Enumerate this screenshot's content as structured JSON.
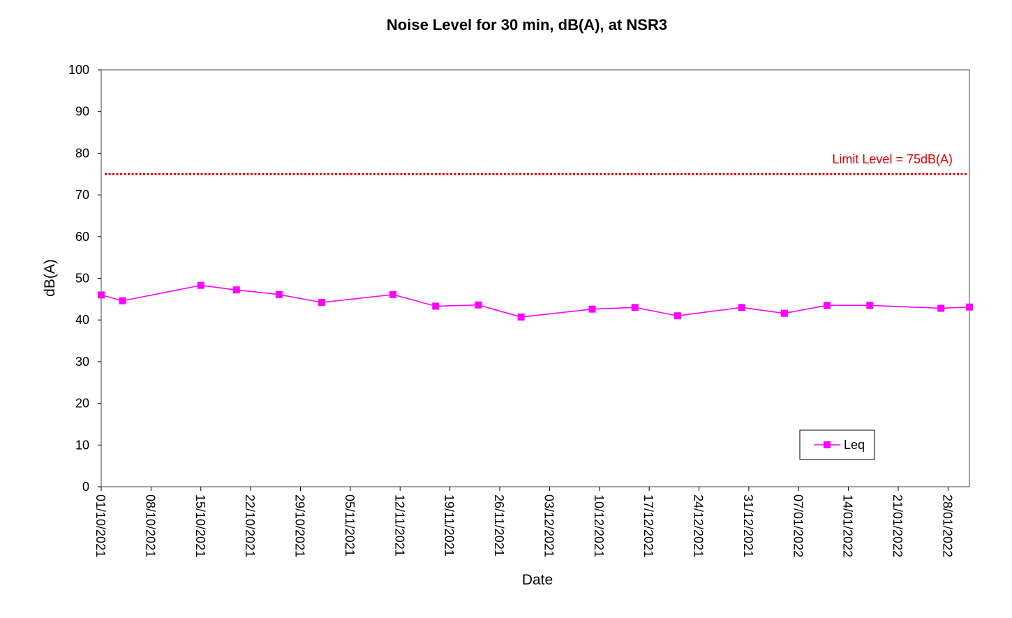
{
  "chart_data": {
    "type": "line",
    "title": "Noise Level for 30 min, dB(A), at NSR3",
    "xlabel": "Date",
    "ylabel": "dB(A)",
    "ylim": [
      0,
      100
    ],
    "yticks": [
      0,
      10,
      20,
      30,
      40,
      50,
      60,
      70,
      80,
      90,
      100
    ],
    "xlim": [
      "2021-10-01",
      "2022-01-31"
    ],
    "xticks": [
      {
        "date": "2021-10-01",
        "label": "01/10/2021"
      },
      {
        "date": "2021-10-08",
        "label": "08/10/2021"
      },
      {
        "date": "2021-10-15",
        "label": "15/10/2021"
      },
      {
        "date": "2021-10-22",
        "label": "22/10/2021"
      },
      {
        "date": "2021-10-29",
        "label": "29/10/2021"
      },
      {
        "date": "2021-11-05",
        "label": "05/11/2021"
      },
      {
        "date": "2021-11-12",
        "label": "12/11/2021"
      },
      {
        "date": "2021-11-19",
        "label": "19/11/2021"
      },
      {
        "date": "2021-11-26",
        "label": "26/11/2021"
      },
      {
        "date": "2021-12-03",
        "label": "03/12/2021"
      },
      {
        "date": "2021-12-10",
        "label": "10/12/2021"
      },
      {
        "date": "2021-12-17",
        "label": "17/12/2021"
      },
      {
        "date": "2021-12-24",
        "label": "24/12/2021"
      },
      {
        "date": "2021-12-31",
        "label": "31/12/2021"
      },
      {
        "date": "2022-01-07",
        "label": "07/01/2022"
      },
      {
        "date": "2022-01-14",
        "label": "14/01/2022"
      },
      {
        "date": "2022-01-21",
        "label": "21/01/2022"
      },
      {
        "date": "2022-01-28",
        "label": "28/01/2022"
      }
    ],
    "series": [
      {
        "name": "Leq",
        "color": "#ff00ff",
        "marker": "square",
        "points": [
          {
            "x": "2021-09-30",
            "y": 46.0
          },
          {
            "x": "2021-10-04",
            "y": 44.6
          },
          {
            "x": "2021-10-15",
            "y": 48.3
          },
          {
            "x": "2021-10-20",
            "y": 47.2
          },
          {
            "x": "2021-10-26",
            "y": 46.1
          },
          {
            "x": "2021-11-01",
            "y": 44.2
          },
          {
            "x": "2021-11-11",
            "y": 46.1
          },
          {
            "x": "2021-11-17",
            "y": 43.3
          },
          {
            "x": "2021-11-23",
            "y": 43.6
          },
          {
            "x": "2021-11-29",
            "y": 40.7
          },
          {
            "x": "2021-12-09",
            "y": 42.6
          },
          {
            "x": "2021-12-15",
            "y": 43.0
          },
          {
            "x": "2021-12-21",
            "y": 41.0
          },
          {
            "x": "2021-12-30",
            "y": 43.0
          },
          {
            "x": "2022-01-05",
            "y": 41.6
          },
          {
            "x": "2022-01-11",
            "y": 43.5
          },
          {
            "x": "2022-01-17",
            "y": 43.5
          },
          {
            "x": "2022-01-27",
            "y": 42.8
          },
          {
            "x": "2022-01-31",
            "y": 43.1
          }
        ]
      }
    ],
    "limit_line": {
      "value": 75,
      "label": "Limit Level = 75dB(A)",
      "color": "#dd0000",
      "style": "dotted"
    },
    "legend": {
      "position": "bottom-right"
    },
    "grid": false
  }
}
